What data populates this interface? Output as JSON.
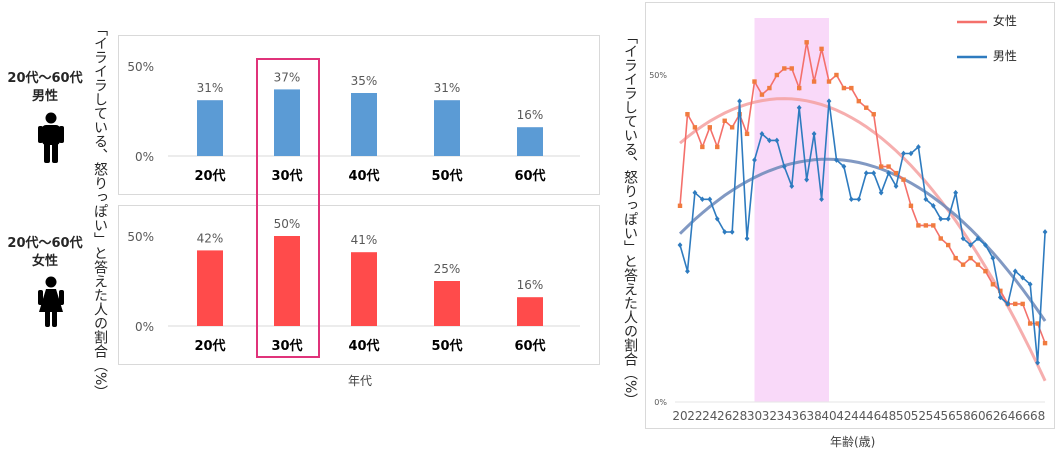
{
  "left": {
    "y_axis_label": "「イライラしている、怒りっぽい」と答えた人の割合（%）",
    "x_axis_label": "年代",
    "men_label_line1": "20代～60代",
    "men_label_line2": "男性",
    "women_label_line1": "20代～60代",
    "women_label_line2": "女性"
  },
  "right": {
    "y_axis_label": "「イライラしている、怒りっぽい」と答えた人の割合（%）",
    "x_axis_label": "年齢(歳)",
    "legend_female": "女性",
    "legend_male": "男性"
  },
  "colors": {
    "men_bar": "#5b9bd5",
    "women_bar": "#ff4b4b",
    "highlight_box": "#e0337a",
    "female_line": "#f4706b",
    "female_marker": "#f07b3f",
    "male_line": "#2e7bbf",
    "female_trend": "#f4a0a0",
    "male_trend": "#6b87b8",
    "shade": "#f9d9f9"
  },
  "chart_data": [
    {
      "type": "bar",
      "title": "",
      "subtitle": "20代～60代 男性",
      "categories": [
        "20代",
        "30代",
        "40代",
        "50代",
        "60代"
      ],
      "values": [
        31,
        37,
        35,
        31,
        16
      ],
      "value_labels": [
        "31%",
        "37%",
        "35%",
        "31%",
        "16%"
      ],
      "ytick_labels": [
        "0%",
        "50%"
      ],
      "ylim": [
        0,
        50
      ],
      "highlight": "30代"
    },
    {
      "type": "bar",
      "title": "",
      "subtitle": "20代～60代 女性",
      "categories": [
        "20代",
        "30代",
        "40代",
        "50代",
        "60代"
      ],
      "values": [
        42,
        50,
        41,
        25,
        16
      ],
      "value_labels": [
        "42%",
        "50%",
        "41%",
        "25%",
        "16%"
      ],
      "ytick_labels": [
        "0%",
        "50%"
      ],
      "ylim": [
        0,
        50
      ],
      "highlight": "30代"
    },
    {
      "type": "line",
      "xlabel": "年齢(歳)",
      "ylabel": "「イライラしている、怒りっぽい」と答えた人の割合（%）",
      "ylim": [
        0,
        50
      ],
      "ytick_labels": [
        "0%",
        "50%"
      ],
      "xtick_labels": [
        "20",
        "22",
        "24",
        "26",
        "28",
        "30",
        "32",
        "34",
        "36",
        "38",
        "40",
        "42",
        "44",
        "46",
        "48",
        "50",
        "52",
        "54",
        "56",
        "58",
        "60",
        "62",
        "64",
        "66",
        "68"
      ],
      "shaded_range": [
        30,
        40
      ],
      "x": [
        20,
        21,
        22,
        23,
        24,
        25,
        26,
        27,
        28,
        29,
        30,
        31,
        32,
        33,
        34,
        35,
        36,
        37,
        38,
        39,
        40,
        41,
        42,
        43,
        44,
        45,
        46,
        47,
        48,
        49,
        50,
        51,
        52,
        53,
        54,
        55,
        56,
        57,
        58,
        59,
        60,
        61,
        62,
        63,
        64,
        65,
        66,
        67,
        68,
        69
      ],
      "series": [
        {
          "name": "女性",
          "values": [
            30,
            44,
            42,
            39,
            42,
            39,
            43,
            42,
            44,
            41,
            49,
            47,
            48,
            50,
            51,
            51,
            48,
            55,
            49,
            54,
            49,
            50,
            48,
            48,
            46,
            45,
            44,
            36,
            36,
            35,
            34,
            30,
            27,
            27,
            27,
            25,
            24,
            22,
            21,
            22,
            21,
            20,
            18,
            17,
            15,
            15,
            15,
            12,
            12,
            9
          ],
          "trend": "quadratic"
        },
        {
          "name": "男性",
          "values": [
            24,
            20,
            32,
            31,
            31,
            28,
            26,
            26,
            46,
            25,
            37,
            41,
            40,
            40,
            36,
            33,
            45,
            34,
            41,
            31,
            46,
            37,
            36,
            31,
            31,
            35,
            35,
            32,
            35,
            33,
            38,
            38,
            39,
            31,
            30,
            28,
            28,
            32,
            25,
            24,
            25,
            24,
            22,
            16,
            15,
            20,
            19,
            18,
            6,
            26
          ],
          "trend": "quadratic"
        }
      ]
    }
  ]
}
